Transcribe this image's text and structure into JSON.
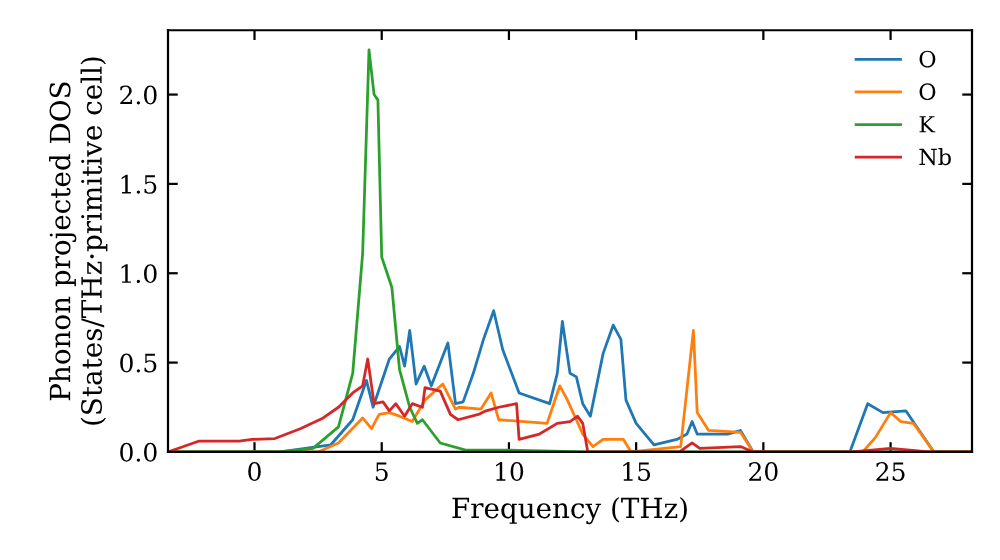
{
  "chart_data": {
    "type": "line",
    "xlabel": "Frequency (THz)",
    "ylabel": "Phonon projected DOS\n(States/THz·primitive cell)",
    "xlim": [
      -3.4,
      28.2
    ],
    "ylim": [
      0,
      2.36
    ],
    "xticks": [
      0,
      5,
      10,
      15,
      20,
      25
    ],
    "yticks": [
      {
        "value": 0,
        "label": "0.0"
      },
      {
        "value": 0.5,
        "label": "0.5"
      },
      {
        "value": 1,
        "label": "1.0"
      },
      {
        "value": 1.5,
        "label": "1.5"
      },
      {
        "value": 2,
        "label": "2.0"
      }
    ],
    "grid": false,
    "legend": "top right",
    "marker": "none",
    "line_style": "solid",
    "series": [
      {
        "name": "O",
        "color": "#1f77b4",
        "x": [
          -3.4,
          1,
          3.0,
          3.86,
          4.4,
          4.66,
          5.3,
          5.7,
          5.9,
          6.1,
          6.35,
          6.67,
          6.95,
          7.6,
          7.9,
          8.2,
          8.6,
          9.0,
          9.4,
          9.76,
          10.4,
          11.6,
          11.9,
          12.1,
          12.4,
          12.65,
          12.9,
          13.2,
          13.7,
          14.1,
          14.4,
          14.6,
          15.0,
          15.7,
          16.6,
          17.0,
          17.2,
          17.4,
          18.6,
          19.1,
          19.6,
          23.4,
          24.1,
          24.7,
          25.6,
          26.7,
          28.2
        ],
        "values": [
          0,
          0,
          0.04,
          0.18,
          0.4,
          0.25,
          0.52,
          0.59,
          0.48,
          0.68,
          0.38,
          0.48,
          0.37,
          0.61,
          0.27,
          0.28,
          0.44,
          0.63,
          0.79,
          0.57,
          0.33,
          0.27,
          0.44,
          0.73,
          0.44,
          0.42,
          0.27,
          0.2,
          0.55,
          0.71,
          0.63,
          0.29,
          0.16,
          0.04,
          0.07,
          0.1,
          0.17,
          0.1,
          0.1,
          0.12,
          0,
          0,
          0.27,
          0.22,
          0.23,
          0,
          0
        ]
      },
      {
        "name": "O",
        "color": "#ff7f0e",
        "x": [
          -3.4,
          2.5,
          3.3,
          4.25,
          4.6,
          4.9,
          5.3,
          5.7,
          6.2,
          6.7,
          7.4,
          7.9,
          8.05,
          8.9,
          9.3,
          9.6,
          11.5,
          12.0,
          12.3,
          12.9,
          13.3,
          13.7,
          14.5,
          14.8,
          16.75,
          17.25,
          17.4,
          17.85,
          19.1,
          19.6,
          23.9,
          24.4,
          25.0,
          25.4,
          25.9,
          26.7,
          28.2
        ],
        "values": [
          0,
          0,
          0.05,
          0.19,
          0.13,
          0.21,
          0.22,
          0.2,
          0.17,
          0.29,
          0.38,
          0.24,
          0.25,
          0.24,
          0.33,
          0.18,
          0.16,
          0.37,
          0.29,
          0.1,
          0.03,
          0.07,
          0.07,
          0,
          0.03,
          0.68,
          0.22,
          0.12,
          0.11,
          0,
          0,
          0.08,
          0.22,
          0.17,
          0.16,
          0,
          0
        ]
      },
      {
        "name": "K",
        "color": "#2ca02c",
        "x": [
          -3.4,
          1.0,
          2.3,
          3.3,
          3.86,
          4.25,
          4.5,
          4.7,
          4.85,
          5.0,
          5.4,
          5.7,
          6.1,
          6.4,
          6.6,
          7.3,
          8.3,
          10,
          13,
          28.2
        ],
        "values": [
          0,
          0,
          0.02,
          0.14,
          0.44,
          1.11,
          2.25,
          2.0,
          1.97,
          1.09,
          0.92,
          0.46,
          0.25,
          0.16,
          0.18,
          0.05,
          0.01,
          0.01,
          0,
          0
        ]
      },
      {
        "name": "Nb",
        "color": "#d62728",
        "x": [
          -3.4,
          -2.2,
          -0.6,
          -0.1,
          0.8,
          1.8,
          2.7,
          3.3,
          3.86,
          4.25,
          4.45,
          4.7,
          5.05,
          5.3,
          5.55,
          5.9,
          6.2,
          6.6,
          6.7,
          7.3,
          7.7,
          8.0,
          8.8,
          9.1,
          9.6,
          10.3,
          10.4,
          11.2,
          11.9,
          12.4,
          12.7,
          12.9,
          13.1,
          16.7,
          17.2,
          17.5,
          19.1,
          19.6,
          23.5,
          25.0,
          26.5,
          28.2
        ],
        "values": [
          0,
          0.06,
          0.06,
          0.07,
          0.075,
          0.13,
          0.19,
          0.25,
          0.33,
          0.37,
          0.52,
          0.27,
          0.28,
          0.23,
          0.27,
          0.2,
          0.27,
          0.25,
          0.36,
          0.34,
          0.21,
          0.18,
          0.21,
          0.23,
          0.25,
          0.27,
          0.07,
          0.1,
          0.16,
          0.17,
          0.2,
          0.16,
          0,
          0,
          0.05,
          0.02,
          0.03,
          0,
          0,
          0.02,
          0,
          0
        ]
      }
    ]
  }
}
